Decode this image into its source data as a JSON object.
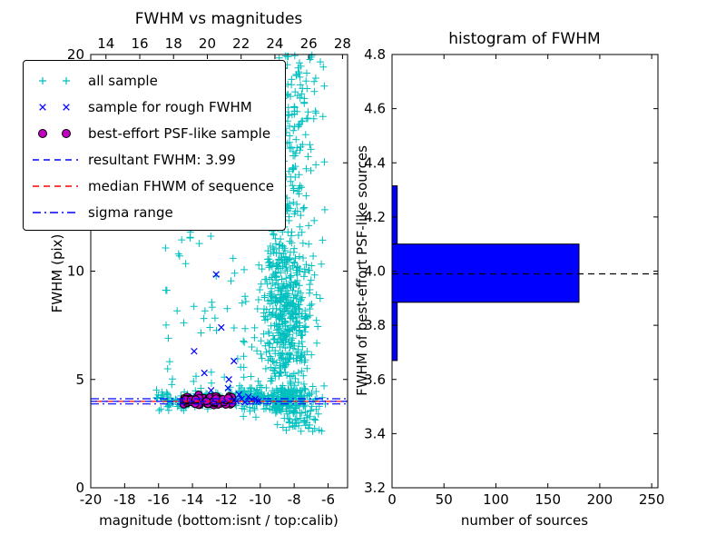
{
  "figure": {
    "background": "#ffffff"
  },
  "legend": {
    "items": [
      {
        "label": "all sample",
        "type": "scatter",
        "marker": "plus",
        "color": "#00bfbf"
      },
      {
        "label": "sample for rough FWHM",
        "type": "scatter",
        "marker": "x",
        "color": "#0000ff"
      },
      {
        "label": "best-effort PSF-like sample",
        "type": "scatter",
        "marker": "circle",
        "color": "#bf00bf",
        "edge": "#000000"
      },
      {
        "label": "resultant FWHM: 3.99",
        "type": "line",
        "style": "dashed",
        "color": "#0000ff"
      },
      {
        "label": "median FHWM of sequence",
        "type": "line",
        "style": "dashed",
        "color": "#ff0000"
      },
      {
        "label": "sigma range",
        "type": "line",
        "style": "dashdot",
        "color": "#0000ff"
      }
    ]
  },
  "chart_data": [
    {
      "type": "scatter",
      "title": "FWHM vs magnitudes",
      "xlabel": "magnitude (bottom:isnt / top:calib)",
      "ylabel": "FWHM (pix)",
      "xlim": [
        -20,
        -4.85
      ],
      "ylim": [
        0,
        20
      ],
      "x_ticks": {
        "values": [
          -20,
          -18,
          -16,
          -14,
          -12,
          -10,
          -8,
          -6
        ],
        "labels": [
          "-20",
          "-18",
          "-16",
          "-14",
          "-12",
          "-10",
          "-8",
          "-6"
        ]
      },
      "y_ticks": {
        "values": [
          0,
          5,
          10,
          15,
          20
        ],
        "labels": [
          "0",
          "5",
          "10",
          "15",
          "20"
        ]
      },
      "top_axis": {
        "lim": [
          13.1,
          28.3
        ],
        "ticks": {
          "values": [
            14,
            16,
            18,
            20,
            22,
            24,
            26,
            28
          ],
          "labels": [
            "14",
            "16",
            "18",
            "20",
            "22",
            "24",
            "26",
            "28"
          ]
        }
      },
      "resultant_fwhm": 3.99,
      "series": [
        {
          "name": "all sample",
          "marker": "plus",
          "color": "#00bfbf",
          "seed": 12345,
          "clusters": [
            {
              "count": 550,
              "x": {
                "dist": "gauss",
                "mean": -8.6,
                "std": 0.75,
                "clip": [
                  -10.6,
                  -6.2
                ]
              },
              "y": {
                "dist": "gauss",
                "mean": 8.0,
                "std": 2.6,
                "clip": [
                  3.4,
                  20
                ]
              }
            },
            {
              "count": 200,
              "x": {
                "dist": "gauss",
                "mean": -8.3,
                "std": 0.9,
                "clip": [
                  -10.4,
                  -6.0
                ]
              },
              "y": {
                "dist": "uniform",
                "min": 12,
                "max": 20
              }
            },
            {
              "count": 120,
              "x": {
                "dist": "gauss",
                "mean": -8.0,
                "std": 0.8,
                "clip": [
                  -9.8,
                  -5.8
                ]
              },
              "y": {
                "dist": "uniform",
                "min": 2.6,
                "max": 4.6
              }
            },
            {
              "count": 200,
              "x": {
                "dist": "gauss",
                "mean": -9.8,
                "std": 1.6,
                "clip": [
                  -13.5,
                  -5.6
                ]
              },
              "y": {
                "dist": "gauss",
                "mean": 4.1,
                "std": 0.3,
                "clip": [
                  3.2,
                  5.1
                ]
              }
            },
            {
              "count": 90,
              "x": {
                "dist": "uniform",
                "min": -16.2,
                "max": -12.5
              },
              "y": {
                "dist": "gauss",
                "mean": 4.1,
                "std": 0.25,
                "clip": [
                  3.4,
                  4.9
                ]
              }
            },
            {
              "count": 55,
              "x": {
                "dist": "uniform",
                "min": -15.6,
                "max": -10.8
              },
              "y": {
                "dist": "uniform",
                "min": 4.8,
                "max": 12.5
              }
            },
            {
              "count": 12,
              "x": {
                "dist": "uniform",
                "min": -13.5,
                "max": -10.5
              },
              "y": {
                "dist": "uniform",
                "min": 12.5,
                "max": 19.5
              }
            }
          ]
        },
        {
          "name": "sample for rough FWHM",
          "marker": "x",
          "color": "#0000ff",
          "points": [
            [
              -14.3,
              4.05
            ],
            [
              -14.0,
              4.2
            ],
            [
              -13.7,
              3.95
            ],
            [
              -13.4,
              4.1
            ],
            [
              -13.1,
              4.0
            ],
            [
              -12.85,
              4.25
            ],
            [
              -12.6,
              9.85
            ],
            [
              -12.5,
              4.05
            ],
            [
              -12.3,
              7.4
            ],
            [
              -12.15,
              4.1
            ],
            [
              -12.0,
              3.95
            ],
            [
              -11.85,
              5.0
            ],
            [
              -11.7,
              4.15
            ],
            [
              -11.55,
              5.85
            ],
            [
              -11.4,
              4.0
            ],
            [
              -11.25,
              4.3
            ],
            [
              -11.1,
              4.1
            ],
            [
              -10.9,
              3.95
            ],
            [
              -10.7,
              4.2
            ],
            [
              -10.5,
              4.05
            ],
            [
              -13.9,
              6.3
            ],
            [
              -13.3,
              5.3
            ],
            [
              -12.9,
              4.5
            ],
            [
              -11.9,
              4.6
            ],
            [
              -10.3,
              4.1
            ],
            [
              -10.1,
              4.0
            ]
          ]
        },
        {
          "name": "best-effort PSF-like sample",
          "marker": "circle",
          "color": "#bf00bf",
          "edge": "#000000",
          "seed": 99,
          "clusters": [
            {
              "count": 95,
              "x": {
                "dist": "uniform",
                "min": -14.55,
                "max": -11.65
              },
              "y": {
                "dist": "gauss",
                "mean": 4.03,
                "std": 0.11,
                "clip": [
                  3.78,
                  4.33
                ]
              }
            }
          ]
        }
      ],
      "hlines": [
        {
          "name": "median FHWM of sequence",
          "y": 3.99,
          "color": "#ff0000",
          "style": "dashed",
          "dashoffset": 7
        },
        {
          "name": "resultant FWHM",
          "y": 3.99,
          "color": "#0000ff",
          "style": "dashed"
        },
        {
          "name": "sigma range upper",
          "y": 4.11,
          "color": "#0000ff",
          "style": "dashdot"
        },
        {
          "name": "sigma range lower",
          "y": 3.87,
          "color": "#0000ff",
          "style": "dashdot"
        }
      ]
    },
    {
      "type": "histogram_h",
      "title": "histogram of FWHM",
      "xlabel": "number of sources",
      "ylabel": "FWHM of best-effort PSF-like sources",
      "xlim": [
        0,
        256
      ],
      "ylim": [
        3.2,
        4.8
      ],
      "x_ticks": {
        "values": [
          0,
          50,
          100,
          150,
          200,
          250
        ],
        "labels": [
          "0",
          "50",
          "100",
          "150",
          "200",
          "250"
        ]
      },
      "y_ticks": {
        "values": [
          3.2,
          3.4,
          3.6,
          3.8,
          4.0,
          4.2,
          4.4,
          4.6,
          4.8
        ],
        "labels": [
          "3.2",
          "3.4",
          "3.6",
          "3.8",
          "4.0",
          "4.2",
          "4.4",
          "4.6",
          "4.8"
        ]
      },
      "bars": {
        "color": "#0000ff",
        "edge": "#000000",
        "bin_edges": [
          3.67,
          3.885,
          4.1,
          4.315
        ],
        "counts": [
          5,
          180,
          5
        ]
      },
      "hline": {
        "y": 3.99,
        "color": "#000000",
        "style": "dashed"
      }
    }
  ]
}
